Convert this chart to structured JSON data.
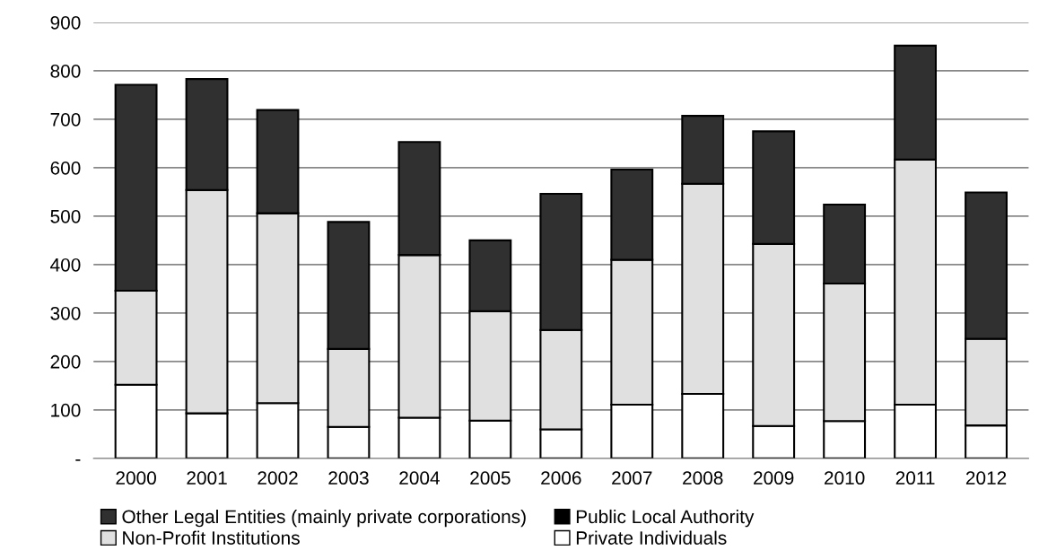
{
  "chart_data": {
    "type": "bar",
    "stacked": true,
    "categories": [
      "2000",
      "2001",
      "2002",
      "2003",
      "2004",
      "2005",
      "2006",
      "2007",
      "2008",
      "2009",
      "2010",
      "2011",
      "2012"
    ],
    "series": [
      {
        "name": "Private Individuals",
        "color": "#ffffff",
        "values": [
          152,
          93,
          114,
          65,
          84,
          78,
          60,
          111,
          133,
          67,
          77,
          111,
          68
        ]
      },
      {
        "name": "Non-Profit Institutions",
        "color": "#e0e0e0",
        "values": [
          194,
          461,
          392,
          161,
          336,
          226,
          205,
          299,
          434,
          376,
          284,
          506,
          179
        ]
      },
      {
        "name": "Public Local Authority",
        "color": "#000000",
        "values": [
          0,
          0,
          0,
          0,
          0,
          0,
          0,
          0,
          0,
          0,
          0,
          0,
          0
        ]
      },
      {
        "name": "Other Legal Entities (mainly private corporations)",
        "color": "#303030",
        "values": [
          425,
          229,
          213,
          262,
          233,
          146,
          281,
          186,
          140,
          232,
          163,
          235,
          302
        ]
      }
    ],
    "ylim": [
      0,
      900
    ],
    "yticks": [
      {
        "value": 0,
        "label": "-"
      },
      100,
      200,
      300,
      400,
      500,
      600,
      700,
      800,
      900
    ],
    "grid": "y",
    "legend": "bottom"
  }
}
